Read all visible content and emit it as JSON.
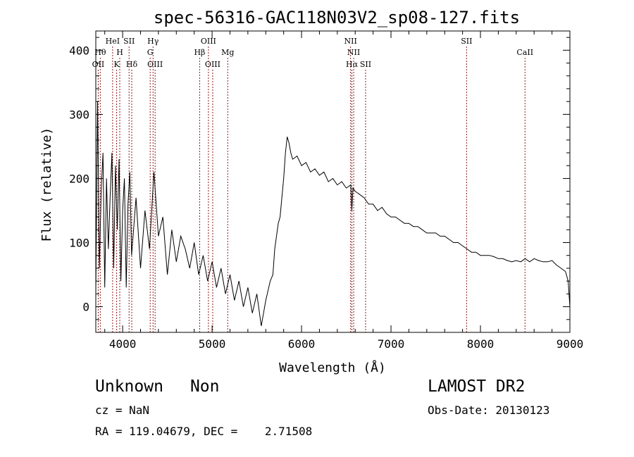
{
  "chart_data": {
    "type": "line",
    "title": "spec-56316-GAC118N03V2_sp08-127.fits",
    "xlabel": "Wavelength (Å)",
    "ylabel": "Flux (relative)",
    "xlim": [
      3700,
      9000
    ],
    "ylim": [
      -40,
      430
    ],
    "x_ticks": [
      4000,
      5000,
      6000,
      7000,
      8000,
      9000
    ],
    "y_ticks": [
      0,
      100,
      200,
      300,
      400
    ],
    "grid": false,
    "line_color": "#000000",
    "marker_color": "#8b1a1a",
    "spectrum": {
      "x": [
        3700,
        3720,
        3740,
        3760,
        3780,
        3800,
        3820,
        3840,
        3860,
        3880,
        3900,
        3920,
        3940,
        3960,
        3980,
        4000,
        4020,
        4040,
        4060,
        4080,
        4100,
        4150,
        4200,
        4250,
        4300,
        4350,
        4400,
        4450,
        4500,
        4550,
        4600,
        4650,
        4700,
        4750,
        4800,
        4850,
        4900,
        4950,
        5000,
        5050,
        5100,
        5150,
        5200,
        5250,
        5300,
        5350,
        5400,
        5450,
        5500,
        5550,
        5600,
        5650,
        5680,
        5700,
        5720,
        5740,
        5760,
        5780,
        5800,
        5820,
        5840,
        5860,
        5880,
        5900,
        5950,
        6000,
        6050,
        6100,
        6150,
        6200,
        6250,
        6300,
        6350,
        6400,
        6450,
        6500,
        6550,
        6562,
        6575,
        6600,
        6650,
        6700,
        6750,
        6800,
        6850,
        6900,
        6950,
        7000,
        7050,
        7100,
        7150,
        7200,
        7250,
        7300,
        7350,
        7400,
        7450,
        7500,
        7550,
        7600,
        7650,
        7700,
        7750,
        7800,
        7850,
        7900,
        7950,
        8000,
        8050,
        8100,
        8150,
        8200,
        8250,
        8300,
        8350,
        8400,
        8450,
        8500,
        8550,
        8600,
        8650,
        8700,
        8750,
        8800,
        8850,
        8900,
        8950,
        8980,
        9000
      ],
      "y": [
        20,
        320,
        60,
        180,
        240,
        30,
        200,
        90,
        170,
        240,
        60,
        220,
        120,
        230,
        40,
        150,
        200,
        30,
        160,
        210,
        80,
        170,
        60,
        150,
        90,
        210,
        110,
        140,
        50,
        120,
        70,
        110,
        90,
        60,
        100,
        50,
        80,
        40,
        70,
        30,
        60,
        20,
        50,
        10,
        40,
        0,
        30,
        -10,
        20,
        -30,
        10,
        40,
        50,
        90,
        110,
        130,
        140,
        170,
        200,
        240,
        265,
        255,
        240,
        230,
        235,
        220,
        225,
        210,
        215,
        205,
        210,
        195,
        200,
        190,
        195,
        185,
        190,
        150,
        185,
        180,
        175,
        170,
        160,
        160,
        150,
        155,
        145,
        140,
        140,
        135,
        130,
        130,
        125,
        125,
        120,
        115,
        115,
        115,
        110,
        110,
        105,
        100,
        100,
        95,
        90,
        85,
        85,
        80,
        80,
        80,
        78,
        75,
        75,
        72,
        70,
        72,
        70,
        75,
        70,
        75,
        72,
        70,
        70,
        72,
        65,
        60,
        55,
        40,
        0
      ]
    },
    "lines": [
      {
        "wl": 3727,
        "label": "OII",
        "row": 3
      },
      {
        "wl": 3750,
        "label": "Hθ",
        "row": 2
      },
      {
        "wl": 3888,
        "label": "HeI",
        "row": 1
      },
      {
        "wl": 3933,
        "label": "K",
        "row": 3
      },
      {
        "wl": 3968,
        "label": "H",
        "row": 2
      },
      {
        "wl": 4072,
        "label": "SII",
        "row": 1
      },
      {
        "wl": 4102,
        "label": "Hδ",
        "row": 3
      },
      {
        "wl": 4308,
        "label": "G",
        "row": 2
      },
      {
        "wl": 4340,
        "label": "Hγ",
        "row": 1
      },
      {
        "wl": 4363,
        "label": "OIII",
        "row": 3
      },
      {
        "wl": 4861,
        "label": "Hβ",
        "row": 2
      },
      {
        "wl": 4959,
        "label": "OIII",
        "row": 1
      },
      {
        "wl": 5007,
        "label": "OIII",
        "row": 3
      },
      {
        "wl": 5175,
        "label": "Mg",
        "row": 2
      },
      {
        "wl": 6548,
        "label": "NII",
        "row": 1
      },
      {
        "wl": 6563,
        "label": "Hα",
        "row": 3
      },
      {
        "wl": 6583,
        "label": "NII",
        "row": 2
      },
      {
        "wl": 6716,
        "label": "SII",
        "row": 3
      },
      {
        "wl": 7845,
        "label": "SII",
        "row": 1
      },
      {
        "wl": 8498,
        "label": "CaII",
        "row": 2
      }
    ]
  },
  "info": {
    "class": "Unknown",
    "subclass": "Non",
    "cz": "cz = NaN",
    "radec": "RA = 119.04679, DEC =    2.71508",
    "survey": "LAMOST DR2",
    "obs_date": "Obs-Date: 20130123"
  }
}
